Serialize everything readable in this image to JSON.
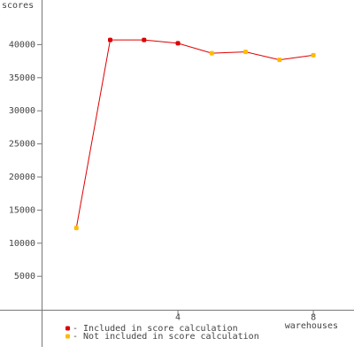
{
  "chart_data": {
    "type": "line",
    "y_label": "scores",
    "x_label": "warehouses",
    "x": [
      1,
      2,
      3,
      4,
      5,
      6,
      7,
      8
    ],
    "values": [
      12300,
      40700,
      40700,
      40200,
      38700,
      38900,
      37700,
      38400
    ],
    "color": "#dd0000",
    "point_colors": [
      "#ffbb00",
      "#dd0000",
      "#dd0000",
      "#dd0000",
      "#ffbb00",
      "#ffbb00",
      "#ffbb00",
      "#ffbb00"
    ],
    "legend": [
      {
        "name": "- Included in score calculation",
        "color": "#dd0000"
      },
      {
        "name": "- Not included in score calculation",
        "color": "#ffbb00"
      }
    ],
    "xlim": [
      0,
      9.2
    ],
    "xticks": [
      4,
      8
    ],
    "ylim": [
      -5000,
      45000
    ],
    "yticks": [
      5000,
      10000,
      15000,
      20000,
      25000,
      30000,
      35000,
      40000
    ]
  }
}
